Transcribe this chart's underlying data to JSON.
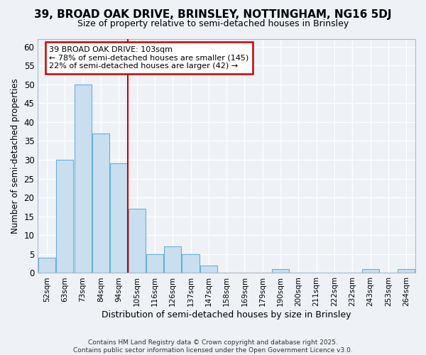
{
  "title1": "39, BROAD OAK DRIVE, BRINSLEY, NOTTINGHAM, NG16 5DJ",
  "title2": "Size of property relative to semi-detached houses in Brinsley",
  "xlabel": "Distribution of semi-detached houses by size in Brinsley",
  "ylabel": "Number of semi-detached properties",
  "categories": [
    "52sqm",
    "63sqm",
    "73sqm",
    "84sqm",
    "94sqm",
    "105sqm",
    "116sqm",
    "126sqm",
    "137sqm",
    "147sqm",
    "158sqm",
    "169sqm",
    "179sqm",
    "190sqm",
    "200sqm",
    "211sqm",
    "222sqm",
    "232sqm",
    "243sqm",
    "253sqm",
    "264sqm"
  ],
  "values": [
    4,
    30,
    50,
    37,
    29,
    17,
    5,
    7,
    5,
    2,
    0,
    0,
    0,
    1,
    0,
    0,
    0,
    0,
    1,
    0,
    1
  ],
  "bar_color": "#c9dff0",
  "bar_edge_color": "#6aaed6",
  "vline_x": 4.5,
  "vline_color": "#cc0000",
  "annotation_text": "39 BROAD OAK DRIVE: 103sqm\n← 78% of semi-detached houses are smaller (145)\n22% of semi-detached houses are larger (42) →",
  "annotation_box_color": "#ffffff",
  "annotation_box_edge_color": "#cc0000",
  "ylim": [
    0,
    62
  ],
  "yticks": [
    0,
    5,
    10,
    15,
    20,
    25,
    30,
    35,
    40,
    45,
    50,
    55,
    60
  ],
  "footer": "Contains HM Land Registry data © Crown copyright and database right 2025.\nContains public sector information licensed under the Open Government Licence v3.0.",
  "bg_color": "#eef2f7",
  "grid_color": "#ffffff",
  "title1_fontsize": 11,
  "title2_fontsize": 9
}
